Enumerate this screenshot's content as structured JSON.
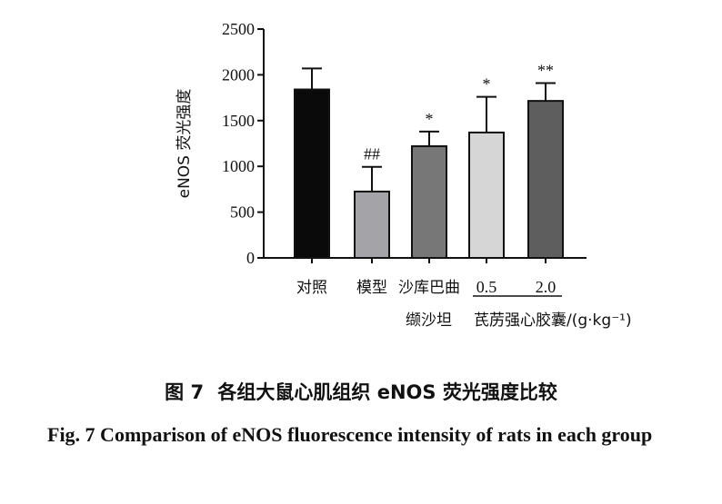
{
  "chart_data": {
    "type": "bar",
    "ylabel": "eNOS 荧光强度",
    "ylim": [
      0,
      2500
    ],
    "yticks": [
      "0",
      "500",
      "1000",
      "1500",
      "2000",
      "2500"
    ],
    "categories": [
      "对照",
      "模型",
      "沙库巴曲",
      "0.5",
      "2.0"
    ],
    "values": [
      1840,
      725,
      1220,
      1370,
      1715
    ],
    "errors": [
      230,
      270,
      160,
      390,
      195
    ],
    "bar_colors": [
      "#0a0a0a",
      "#a4a4a8",
      "#777777",
      "#d6d6d6",
      "#5e5e5e"
    ],
    "significance": [
      "",
      "##",
      "*",
      "*",
      "**"
    ],
    "group_label_left": "缬沙坦",
    "group_label_right": "芪苈强心胶囊/(g·kg⁻¹)"
  },
  "caption": {
    "cn_fig": "图 7",
    "cn_text": "各组大鼠心肌组织 eNOS 荧光强度比较",
    "en_text": "Fig. 7 Comparison of eNOS fluorescence intensity of rats in each group"
  }
}
